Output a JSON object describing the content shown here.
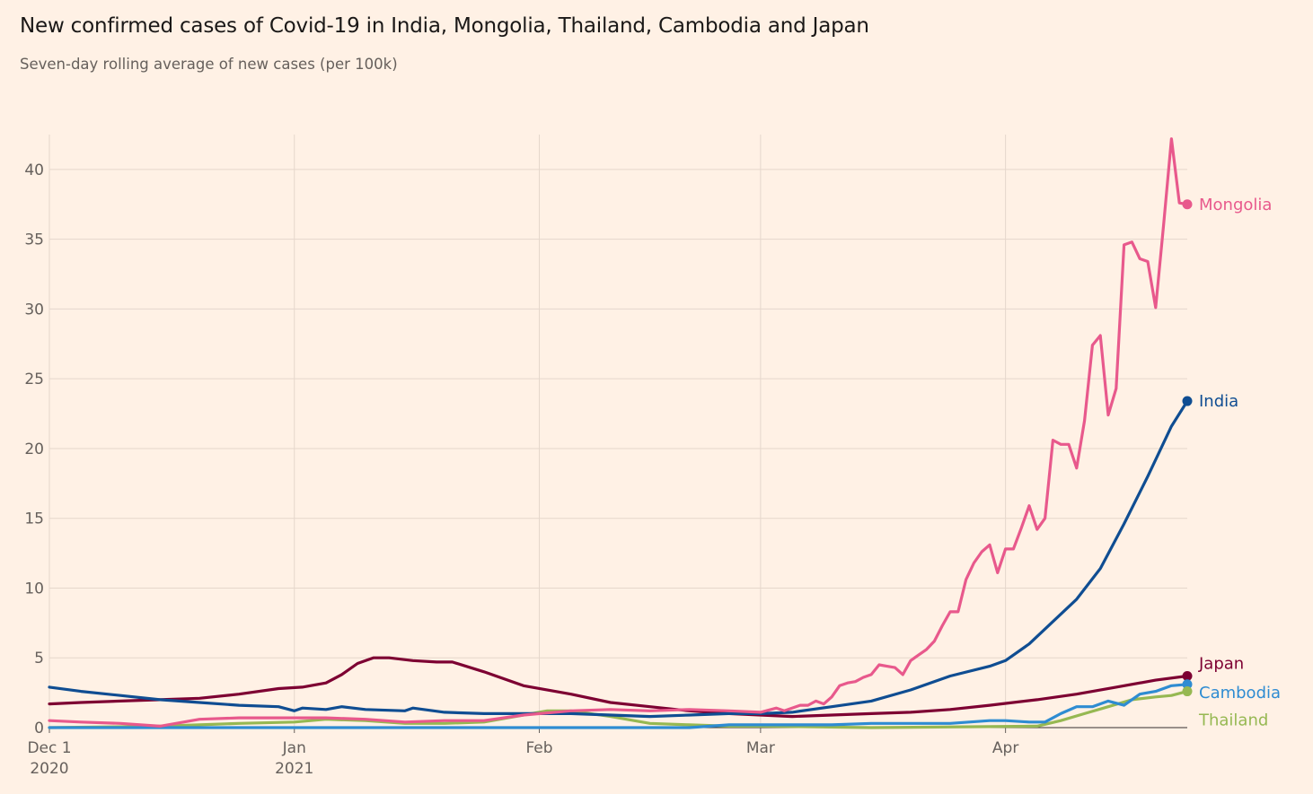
{
  "header": {
    "title": "New confirmed cases of Covid-19 in India, Mongolia, Thailand, Cambodia and Japan",
    "subtitle": "Seven-day rolling average of new cases (per 100k)"
  },
  "chart_data": {
    "type": "line",
    "title": "New confirmed cases of Covid-19 in India, Mongolia, Thailand, Cambodia and Japan",
    "subtitle": "Seven-day rolling average of new cases (per 100k)",
    "xlabel": "",
    "ylabel": "",
    "x_range": [
      "2020-12-01",
      "2021-04-24"
    ],
    "ylim": [
      0,
      42.5
    ],
    "y_ticks": [
      0,
      5,
      10,
      15,
      20,
      25,
      30,
      35,
      40
    ],
    "x_ticks": [
      {
        "date": "2020-12-01",
        "label": "Dec 1",
        "sublabel": "2020"
      },
      {
        "date": "2021-01-01",
        "label": "Jan",
        "sublabel": "2021"
      },
      {
        "date": "2021-02-01",
        "label": "Feb",
        "sublabel": ""
      },
      {
        "date": "2021-03-01",
        "label": "Mar",
        "sublabel": ""
      },
      {
        "date": "2021-04-01",
        "label": "Apr",
        "sublabel": ""
      }
    ],
    "grid": true,
    "legend": "inline labels at line ends (right)",
    "series": [
      {
        "name": "Mongolia",
        "color": "#e8598c",
        "points": [
          [
            "2020-12-01",
            0.5
          ],
          [
            "2020-12-05",
            0.4
          ],
          [
            "2020-12-10",
            0.3
          ],
          [
            "2020-12-15",
            0.1
          ],
          [
            "2020-12-20",
            0.6
          ],
          [
            "2020-12-25",
            0.7
          ],
          [
            "2020-12-30",
            0.7
          ],
          [
            "2021-01-05",
            0.7
          ],
          [
            "2021-01-10",
            0.6
          ],
          [
            "2021-01-15",
            0.4
          ],
          [
            "2021-01-20",
            0.5
          ],
          [
            "2021-01-25",
            0.5
          ],
          [
            "2021-01-30",
            0.9
          ],
          [
            "2021-02-05",
            1.2
          ],
          [
            "2021-02-10",
            1.3
          ],
          [
            "2021-02-15",
            1.2
          ],
          [
            "2021-02-20",
            1.3
          ],
          [
            "2021-02-25",
            1.2
          ],
          [
            "2021-03-01",
            1.1
          ],
          [
            "2021-03-03",
            1.4
          ],
          [
            "2021-03-04",
            1.2
          ],
          [
            "2021-03-06",
            1.6
          ],
          [
            "2021-03-07",
            1.6
          ],
          [
            "2021-03-08",
            1.9
          ],
          [
            "2021-03-09",
            1.7
          ],
          [
            "2021-03-10",
            2.2
          ],
          [
            "2021-03-11",
            3.0
          ],
          [
            "2021-03-12",
            3.2
          ],
          [
            "2021-03-13",
            3.3
          ],
          [
            "2021-03-14",
            3.6
          ],
          [
            "2021-03-15",
            3.8
          ],
          [
            "2021-03-16",
            4.5
          ],
          [
            "2021-03-17",
            4.4
          ],
          [
            "2021-03-18",
            4.3
          ],
          [
            "2021-03-19",
            3.8
          ],
          [
            "2021-03-20",
            4.8
          ],
          [
            "2021-03-21",
            5.2
          ],
          [
            "2021-03-22",
            5.6
          ],
          [
            "2021-03-23",
            6.2
          ],
          [
            "2021-03-24",
            7.3
          ],
          [
            "2021-03-25",
            8.3
          ],
          [
            "2021-03-26",
            8.3
          ],
          [
            "2021-03-27",
            10.6
          ],
          [
            "2021-03-28",
            11.8
          ],
          [
            "2021-03-29",
            12.6
          ],
          [
            "2021-03-30",
            13.1
          ],
          [
            "2021-03-31",
            11.1
          ],
          [
            "2021-04-01",
            12.8
          ],
          [
            "2021-04-02",
            12.8
          ],
          [
            "2021-04-03",
            14.3
          ],
          [
            "2021-04-04",
            15.9
          ],
          [
            "2021-04-05",
            14.2
          ],
          [
            "2021-04-06",
            15.0
          ],
          [
            "2021-04-07",
            20.6
          ],
          [
            "2021-04-08",
            20.3
          ],
          [
            "2021-04-09",
            20.3
          ],
          [
            "2021-04-10",
            18.6
          ],
          [
            "2021-04-11",
            22.0
          ],
          [
            "2021-04-12",
            27.4
          ],
          [
            "2021-04-13",
            28.1
          ],
          [
            "2021-04-14",
            22.4
          ],
          [
            "2021-04-15",
            24.3
          ],
          [
            "2021-04-16",
            34.6
          ],
          [
            "2021-04-17",
            34.8
          ],
          [
            "2021-04-18",
            33.6
          ],
          [
            "2021-04-19",
            33.4
          ],
          [
            "2021-04-20",
            30.1
          ],
          [
            "2021-04-21",
            36.0
          ],
          [
            "2021-04-22",
            42.2
          ],
          [
            "2021-04-23",
            37.6
          ],
          [
            "2021-04-24",
            37.5
          ]
        ]
      },
      {
        "name": "India",
        "color": "#0f4d92",
        "points": [
          [
            "2020-12-01",
            2.9
          ],
          [
            "2020-12-05",
            2.6
          ],
          [
            "2020-12-10",
            2.3
          ],
          [
            "2020-12-15",
            2.0
          ],
          [
            "2020-12-20",
            1.8
          ],
          [
            "2020-12-25",
            1.6
          ],
          [
            "2020-12-30",
            1.5
          ],
          [
            "2021-01-01",
            1.2
          ],
          [
            "2021-01-02",
            1.4
          ],
          [
            "2021-01-05",
            1.3
          ],
          [
            "2021-01-07",
            1.5
          ],
          [
            "2021-01-10",
            1.3
          ],
          [
            "2021-01-15",
            1.2
          ],
          [
            "2021-01-16",
            1.4
          ],
          [
            "2021-01-20",
            1.1
          ],
          [
            "2021-01-25",
            1.0
          ],
          [
            "2021-01-30",
            1.0
          ],
          [
            "2021-02-05",
            1.0
          ],
          [
            "2021-02-10",
            0.9
          ],
          [
            "2021-02-15",
            0.8
          ],
          [
            "2021-02-20",
            0.9
          ],
          [
            "2021-02-25",
            1.0
          ],
          [
            "2021-03-01",
            1.0
          ],
          [
            "2021-03-05",
            1.1
          ],
          [
            "2021-03-10",
            1.5
          ],
          [
            "2021-03-15",
            1.9
          ],
          [
            "2021-03-20",
            2.7
          ],
          [
            "2021-03-25",
            3.7
          ],
          [
            "2021-03-30",
            4.4
          ],
          [
            "2021-04-01",
            4.8
          ],
          [
            "2021-04-04",
            6.0
          ],
          [
            "2021-04-07",
            7.6
          ],
          [
            "2021-04-10",
            9.2
          ],
          [
            "2021-04-13",
            11.4
          ],
          [
            "2021-04-16",
            14.6
          ],
          [
            "2021-04-19",
            18.0
          ],
          [
            "2021-04-22",
            21.6
          ],
          [
            "2021-04-24",
            23.4
          ]
        ]
      },
      {
        "name": "Japan",
        "color": "#7d0032",
        "points": [
          [
            "2020-12-01",
            1.7
          ],
          [
            "2020-12-05",
            1.8
          ],
          [
            "2020-12-10",
            1.9
          ],
          [
            "2020-12-15",
            2.0
          ],
          [
            "2020-12-20",
            2.1
          ],
          [
            "2020-12-25",
            2.4
          ],
          [
            "2020-12-30",
            2.8
          ],
          [
            "2021-01-02",
            2.9
          ],
          [
            "2021-01-05",
            3.2
          ],
          [
            "2021-01-07",
            3.8
          ],
          [
            "2021-01-09",
            4.6
          ],
          [
            "2021-01-11",
            5.0
          ],
          [
            "2021-01-13",
            5.0
          ],
          [
            "2021-01-16",
            4.8
          ],
          [
            "2021-01-19",
            4.7
          ],
          [
            "2021-01-21",
            4.7
          ],
          [
            "2021-01-25",
            4.0
          ],
          [
            "2021-01-30",
            3.0
          ],
          [
            "2021-02-05",
            2.4
          ],
          [
            "2021-02-10",
            1.8
          ],
          [
            "2021-02-15",
            1.5
          ],
          [
            "2021-02-20",
            1.2
          ],
          [
            "2021-02-25",
            1.0
          ],
          [
            "2021-03-01",
            0.9
          ],
          [
            "2021-03-05",
            0.8
          ],
          [
            "2021-03-10",
            0.9
          ],
          [
            "2021-03-15",
            1.0
          ],
          [
            "2021-03-20",
            1.1
          ],
          [
            "2021-03-25",
            1.3
          ],
          [
            "2021-03-30",
            1.6
          ],
          [
            "2021-04-05",
            2.0
          ],
          [
            "2021-04-10",
            2.4
          ],
          [
            "2021-04-15",
            2.9
          ],
          [
            "2021-04-20",
            3.4
          ],
          [
            "2021-04-24",
            3.7
          ]
        ]
      },
      {
        "name": "Cambodia",
        "color": "#2e8cd2",
        "points": [
          [
            "2020-12-01",
            0.0
          ],
          [
            "2021-02-20",
            0.0
          ],
          [
            "2021-02-25",
            0.2
          ],
          [
            "2021-03-01",
            0.2
          ],
          [
            "2021-03-05",
            0.2
          ],
          [
            "2021-03-10",
            0.2
          ],
          [
            "2021-03-15",
            0.3
          ],
          [
            "2021-03-20",
            0.3
          ],
          [
            "2021-03-25",
            0.3
          ],
          [
            "2021-03-30",
            0.5
          ],
          [
            "2021-04-01",
            0.5
          ],
          [
            "2021-04-04",
            0.4
          ],
          [
            "2021-04-06",
            0.4
          ],
          [
            "2021-04-08",
            1.0
          ],
          [
            "2021-04-10",
            1.5
          ],
          [
            "2021-04-12",
            1.5
          ],
          [
            "2021-04-14",
            1.9
          ],
          [
            "2021-04-16",
            1.6
          ],
          [
            "2021-04-18",
            2.4
          ],
          [
            "2021-04-20",
            2.6
          ],
          [
            "2021-04-22",
            3.0
          ],
          [
            "2021-04-24",
            3.1
          ]
        ]
      },
      {
        "name": "Thailand",
        "color": "#96b852",
        "points": [
          [
            "2020-12-01",
            0.0
          ],
          [
            "2020-12-15",
            0.1
          ],
          [
            "2020-12-20",
            0.2
          ],
          [
            "2020-12-25",
            0.3
          ],
          [
            "2021-01-01",
            0.4
          ],
          [
            "2021-01-05",
            0.6
          ],
          [
            "2021-01-10",
            0.5
          ],
          [
            "2021-01-15",
            0.3
          ],
          [
            "2021-01-20",
            0.3
          ],
          [
            "2021-01-25",
            0.4
          ],
          [
            "2021-01-30",
            0.9
          ],
          [
            "2021-02-02",
            1.2
          ],
          [
            "2021-02-05",
            1.2
          ],
          [
            "2021-02-10",
            0.8
          ],
          [
            "2021-02-15",
            0.3
          ],
          [
            "2021-02-20",
            0.2
          ],
          [
            "2021-02-25",
            0.1
          ],
          [
            "2021-03-01",
            0.1
          ],
          [
            "2021-03-15",
            0.0
          ],
          [
            "2021-04-05",
            0.1
          ],
          [
            "2021-04-08",
            0.5
          ],
          [
            "2021-04-11",
            1.0
          ],
          [
            "2021-04-14",
            1.5
          ],
          [
            "2021-04-17",
            2.0
          ],
          [
            "2021-04-20",
            2.2
          ],
          [
            "2021-04-22",
            2.3
          ],
          [
            "2021-04-24",
            2.6
          ]
        ]
      }
    ]
  }
}
